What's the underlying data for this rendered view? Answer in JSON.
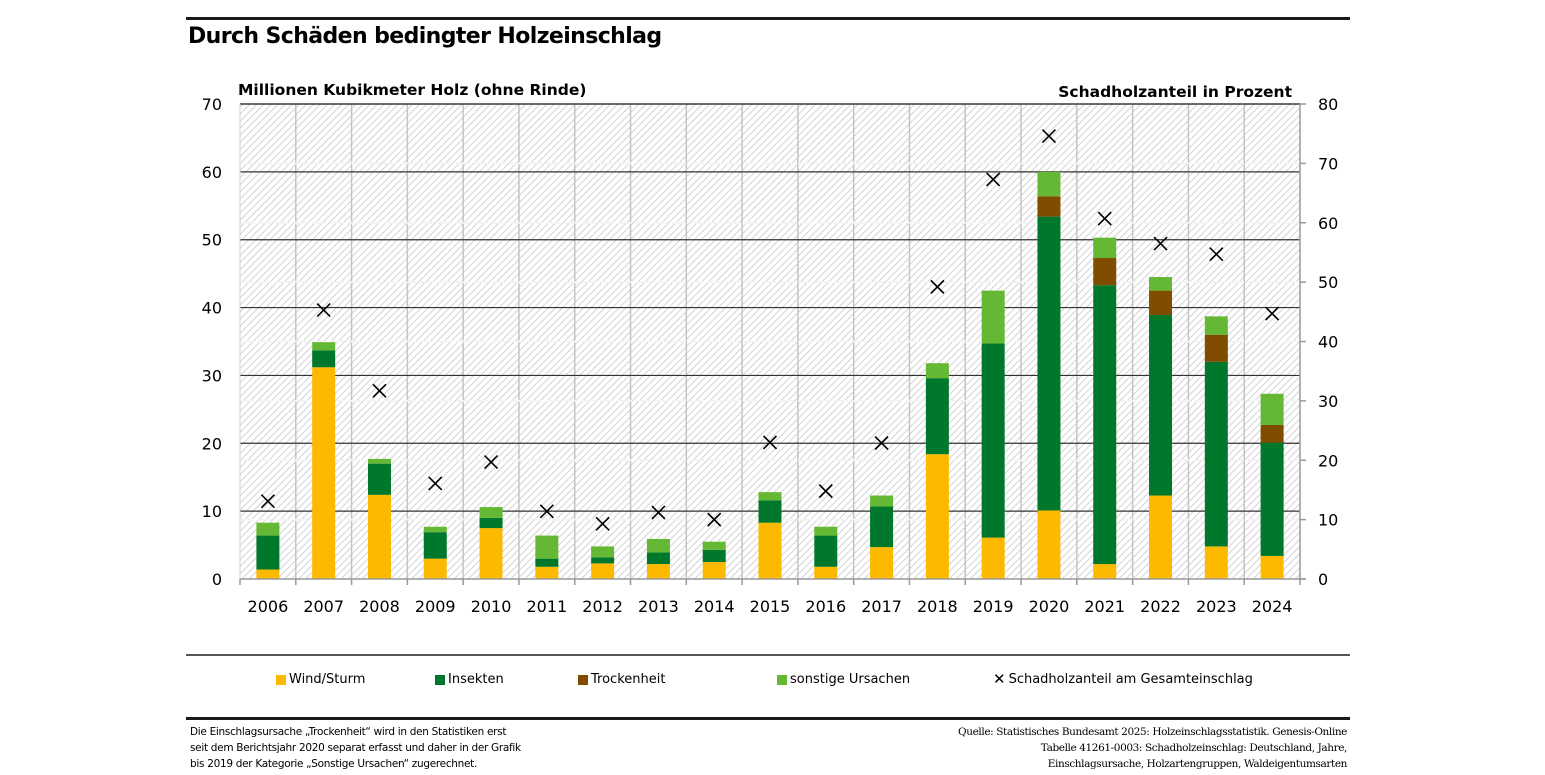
{
  "title": "Durch Schäden bedingter Holzeinschlag",
  "colors": {
    "wind": "#FBB900",
    "insects": "#00782B",
    "drought": "#7F4C00",
    "other": "#64B833",
    "marker": "#000000",
    "gridline": "#333333",
    "hatch": "#c8c8c8"
  },
  "legend": {
    "items": [
      {
        "label": "Wind/Sturm",
        "key": "wind",
        "type": "swatch"
      },
      {
        "label": "Insekten",
        "key": "insects",
        "type": "swatch"
      },
      {
        "label": "Trockenheit",
        "key": "drought",
        "type": "swatch"
      },
      {
        "label": "sonstige Ursachen",
        "key": "other",
        "type": "swatch"
      },
      {
        "label": "Schadholzanteil am Gesamteinschlag",
        "key": "marker",
        "type": "cross",
        "symbol": "✕"
      }
    ]
  },
  "footnote": {
    "lines": [
      "Die Einschlagsursache „Trockenheit“ wird in den Statistiken erst",
      "seit dem Berichtsjahr 2020 separat erfasst und daher in der Grafik",
      "bis 2019 der Kategorie „Sonstige Ursachen“ zugerechnet."
    ]
  },
  "source": {
    "lines": [
      "Quelle: Statistisches Bundesamt 2025: Holzeinschlagsstatistik. Genesis-Online",
      "Tabelle 41261-0003: Schadholzeinschlag: Deutschland, Jahre,",
      "Einschlagsursache, Holzartengruppen, Waldeigentumsarten"
    ]
  },
  "chart_data": {
    "type": "bar",
    "stacked": true,
    "title": "Durch Schäden bedingter Holzeinschlag",
    "xlabel": "",
    "ylabel": "Millionen Kubikmeter Holz (ohne Rinde)",
    "y2label": "Schadholzanteil in Prozent",
    "ylim": [
      0,
      70
    ],
    "y2lim": [
      0,
      80
    ],
    "yticks": [
      0,
      10,
      20,
      30,
      40,
      50,
      60,
      70
    ],
    "y2ticks": [
      0,
      10,
      20,
      30,
      40,
      50,
      60,
      70,
      80
    ],
    "grid": true,
    "legend_position": "bottom",
    "categories": [
      "2006",
      "2007",
      "2008",
      "2009",
      "2010",
      "2011",
      "2012",
      "2013",
      "2014",
      "2015",
      "2016",
      "2017",
      "2018",
      "2019",
      "2020",
      "2021",
      "2022",
      "2023",
      "2024"
    ],
    "series": [
      {
        "name": "Wind/Sturm",
        "key": "wind",
        "axis": "left",
        "values": [
          1.4,
          31.2,
          12.4,
          3.0,
          7.5,
          1.8,
          2.3,
          2.2,
          2.5,
          8.3,
          1.8,
          4.7,
          18.4,
          6.1,
          10.1,
          2.2,
          12.3,
          4.8,
          3.4
        ]
      },
      {
        "name": "Insekten",
        "key": "insects",
        "axis": "left",
        "values": [
          5.0,
          2.5,
          4.6,
          3.9,
          1.5,
          1.2,
          0.9,
          1.7,
          1.8,
          3.3,
          4.6,
          6.0,
          11.2,
          28.6,
          43.3,
          41.1,
          26.6,
          27.2,
          16.7
        ]
      },
      {
        "name": "Trockenheit",
        "key": "drought",
        "axis": "left",
        "values": [
          0,
          0,
          0,
          0,
          0,
          0,
          0,
          0,
          0,
          0,
          0,
          0,
          0,
          0,
          3.0,
          4.0,
          3.6,
          4.0,
          2.6
        ]
      },
      {
        "name": "sonstige Ursachen",
        "key": "other",
        "axis": "left",
        "values": [
          1.9,
          1.2,
          0.7,
          0.8,
          1.6,
          3.4,
          1.6,
          2.0,
          1.2,
          1.2,
          1.3,
          1.6,
          2.2,
          7.8,
          3.6,
          3.0,
          2.0,
          2.7,
          4.6
        ]
      },
      {
        "name": "Schadholzanteil am Gesamteinschlag",
        "key": "marker",
        "axis": "right",
        "marker": "x",
        "values": [
          13.1,
          45.3,
          31.7,
          16.1,
          19.7,
          11.4,
          9.3,
          11.2,
          10.0,
          23.0,
          14.8,
          22.9,
          49.2,
          67.3,
          74.6,
          60.7,
          56.5,
          54.7,
          44.7
        ]
      }
    ]
  }
}
